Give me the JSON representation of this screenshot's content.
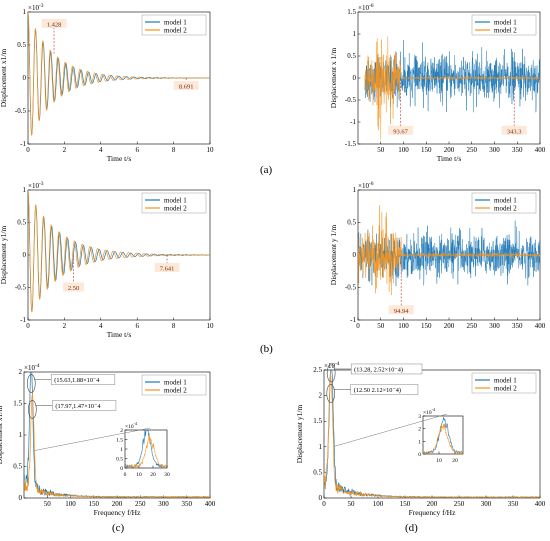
{
  "colors": {
    "model1": "#1f77b4",
    "model2": "#f7941d",
    "annot": "#c0504d",
    "axis": "#000000"
  },
  "panel_labels": [
    "(a)",
    "(b)",
    "(c)",
    "(d)"
  ],
  "chart_data": [
    {
      "id": "a_left",
      "type": "line",
      "xlabel": "Time t/s",
      "ylabel": "Displacement x1/m",
      "xlim": [
        0,
        10
      ],
      "ylim": [
        -1,
        1
      ],
      "exponent": "×10^-3",
      "xticks": [
        "0",
        "2",
        "4",
        "6",
        "8",
        "10"
      ],
      "yticks": [
        "1",
        "0.5",
        "0",
        "-0.5",
        "-1"
      ],
      "legend": "top-right",
      "series": [
        {
          "name": "model 1",
          "kind": "decay",
          "amp": 1.0,
          "decay": 0.72,
          "freq": 2.4,
          "end": 10
        },
        {
          "name": "model 2",
          "kind": "decay",
          "amp": 1.0,
          "decay": 0.7,
          "freq": 2.45,
          "end": 10
        }
      ],
      "annotations": [
        {
          "text": "1.428",
          "x": 1.43,
          "y": 0.37,
          "label_y": 0.82
        },
        {
          "text": "8.691",
          "x": 8.69,
          "y": 0.0,
          "label_y": -0.12
        }
      ]
    },
    {
      "id": "a_right",
      "type": "line",
      "xlabel": "Time t/s",
      "ylabel": "Displacement x 1/m",
      "xlim": [
        0,
        400
      ],
      "ylim": [
        -1.5,
        1.5
      ],
      "exponent": "×10^-6",
      "xticks": [
        "50",
        "100",
        "150",
        "200",
        "250",
        "300",
        "350",
        "400"
      ],
      "xtick_values": [
        50,
        100,
        150,
        200,
        250,
        300,
        350,
        400
      ],
      "yticks": [
        "1.5",
        "1",
        "0.5",
        "0",
        "-0.5",
        "-1",
        "-1.5"
      ],
      "legend": "top-right",
      "series": [
        {
          "name": "model 1",
          "kind": "noise",
          "x_start": 15,
          "x_end": 400,
          "amp": 0.55
        },
        {
          "name": "model 2",
          "kind": "noise_burst",
          "x_start": 15,
          "x_end": 400,
          "amp": 0.6,
          "burst_end": 94
        }
      ],
      "annotations": [
        {
          "text": "93.67",
          "x": 93.67,
          "y": -0.1,
          "label_y": -1.2
        },
        {
          "text": "343.3",
          "x": 343.3,
          "y": -0.1,
          "label_y": -1.2
        }
      ]
    },
    {
      "id": "b_left",
      "type": "line",
      "xlabel": "Time t/s",
      "ylabel": "Displacement y1/m",
      "xlim": [
        0,
        10
      ],
      "ylim": [
        -1,
        1
      ],
      "exponent": "×10^-3",
      "xticks": [
        "0",
        "2",
        "4",
        "6",
        "8",
        "10"
      ],
      "yticks": [
        "1",
        "0.5",
        "0",
        "-0.5",
        "-1"
      ],
      "legend": "top-right",
      "series": [
        {
          "name": "model 1",
          "kind": "decay",
          "amp": 1.0,
          "decay": 0.62,
          "freq": 2.3,
          "end": 10
        },
        {
          "name": "model 2",
          "kind": "decay",
          "amp": 1.0,
          "decay": 0.6,
          "freq": 2.35,
          "end": 10
        }
      ],
      "annotations": [
        {
          "text": "2.50",
          "x": 2.5,
          "y": 0.0,
          "label_y": -0.5
        },
        {
          "text": "7.641",
          "x": 7.64,
          "y": 0.0,
          "label_y": -0.2
        }
      ]
    },
    {
      "id": "b_right",
      "type": "line",
      "xlabel": "",
      "ylabel": "Displacement y 1/m",
      "xlim": [
        0,
        400
      ],
      "ylim": [
        -1,
        1
      ],
      "exponent": "×10^-6",
      "xticks": [
        "0",
        "50",
        "100",
        "150",
        "200",
        "250",
        "300",
        "350",
        "400"
      ],
      "xtick_values": [
        0,
        50,
        100,
        150,
        200,
        250,
        300,
        350,
        400
      ],
      "yticks": [
        "1",
        "0.5",
        "0",
        "-0.5",
        "-1"
      ],
      "legend": "top-right",
      "series": [
        {
          "name": "model 1",
          "kind": "noise",
          "x_start": 0,
          "x_end": 400,
          "amp": 0.35
        },
        {
          "name": "model 2",
          "kind": "noise_burst",
          "x_start": 0,
          "x_end": 400,
          "amp": 0.4,
          "burst_end": 95
        }
      ],
      "annotations": [
        {
          "text": "94.94",
          "x": 94.94,
          "y": -0.1,
          "label_y": -0.85
        }
      ]
    },
    {
      "id": "c",
      "type": "line",
      "xlabel": "Frequency  f/Hz",
      "ylabel": "Displacement  x1/m",
      "xlim": [
        0,
        400
      ],
      "ylim": [
        0,
        2
      ],
      "exponent": "×10^-4",
      "xticks": [
        "50",
        "100",
        "150",
        "200",
        "250",
        "300",
        "350",
        "400"
      ],
      "xtick_values": [
        50,
        100,
        150,
        200,
        250,
        300,
        350,
        400
      ],
      "yticks": [
        "2",
        "1.5",
        "1",
        "0.5",
        "0"
      ],
      "legend": "top-right",
      "series": [
        {
          "name": "model 1",
          "kind": "spectrum",
          "peak_x": 15.63,
          "peak_y": 1.88
        },
        {
          "name": "model 2",
          "kind": "spectrum",
          "peak_x": 17.97,
          "peak_y": 1.47
        }
      ],
      "annotations": [
        {
          "text": "(15.63,1.88×10⁻4",
          "x": 15.63,
          "y": 1.88,
          "label_y": 1.88
        },
        {
          "text": "(17.97,1.47×10⁻4",
          "x": 17.97,
          "y": 1.47,
          "label_y": 1.47
        }
      ],
      "inset": {
        "exponent": "×10^-4",
        "xlim": [
          0,
          30
        ],
        "ylim": [
          0,
          2
        ],
        "xticks": [
          "0",
          "10",
          "20",
          "30"
        ],
        "yticks": [
          "2",
          "1.5",
          "1",
          "0.5",
          "0"
        ]
      }
    },
    {
      "id": "d",
      "type": "line",
      "xlabel": "Frequency  f/Hz",
      "ylabel": "Displacement y1/m",
      "xlim": [
        0,
        400
      ],
      "ylim": [
        0,
        2.5
      ],
      "exponent": "×10^-4",
      "xticks": [
        "0",
        "50",
        "100",
        "150",
        "200",
        "250",
        "300",
        "350",
        "400"
      ],
      "xtick_values": [
        0,
        50,
        100,
        150,
        200,
        250,
        300,
        350,
        400
      ],
      "yticks": [
        "2.5",
        "2",
        "1.5",
        "1",
        "0.5",
        "0"
      ],
      "legend": "top-right",
      "series": [
        {
          "name": "model 1",
          "kind": "spectrum",
          "peak_x": 13.28,
          "peak_y": 2.52
        },
        {
          "name": "model 2",
          "kind": "spectrum",
          "peak_x": 12.5,
          "peak_y": 2.12
        }
      ],
      "annotations": [
        {
          "text": "(13.28, 2.52×10⁻4)",
          "x": 13.28,
          "y": 2.52,
          "label_y": 2.52
        },
        {
          "text": "(12.50 2.12×10⁻4)",
          "x": 12.5,
          "y": 2.12,
          "label_y": 2.12
        }
      ],
      "inset": {
        "exponent": "×10^-4",
        "xlim": [
          0,
          25
        ],
        "ylim": [
          0,
          3
        ],
        "xticks": [
          "10",
          "20"
        ],
        "yticks": [
          "3",
          "2",
          "1",
          "0"
        ]
      }
    }
  ]
}
